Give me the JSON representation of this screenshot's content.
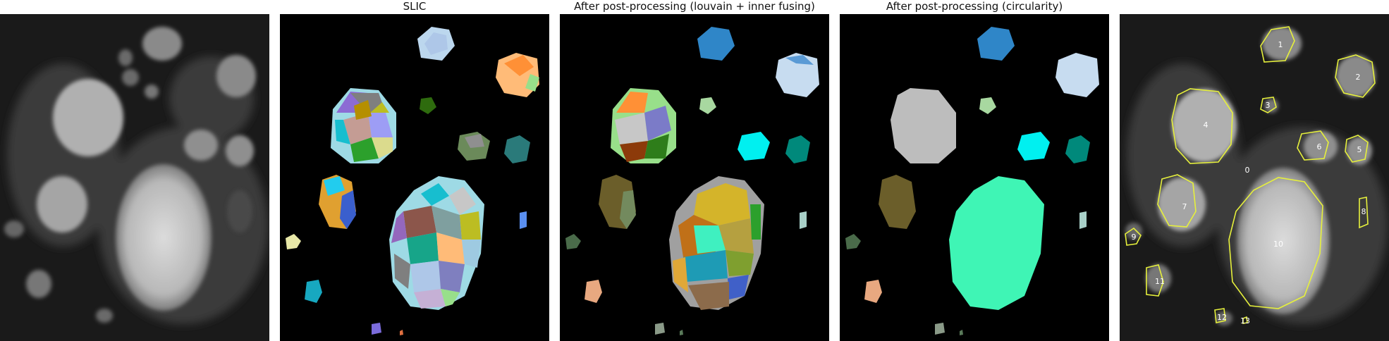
{
  "panels": [
    {
      "title": ""
    },
    {
      "title": "SLIC"
    },
    {
      "title": "After post-processing (louvain + inner fusing)"
    },
    {
      "title": "After post-processing (circularity)"
    },
    {
      "title": ""
    }
  ],
  "cell_labels": [
    "0",
    "1",
    "2",
    "3",
    "4",
    "5",
    "6",
    "7",
    "8",
    "9",
    "10",
    "11",
    "12",
    "13"
  ],
  "colors": {
    "contour": "#e6f03c",
    "background": "#000000"
  }
}
